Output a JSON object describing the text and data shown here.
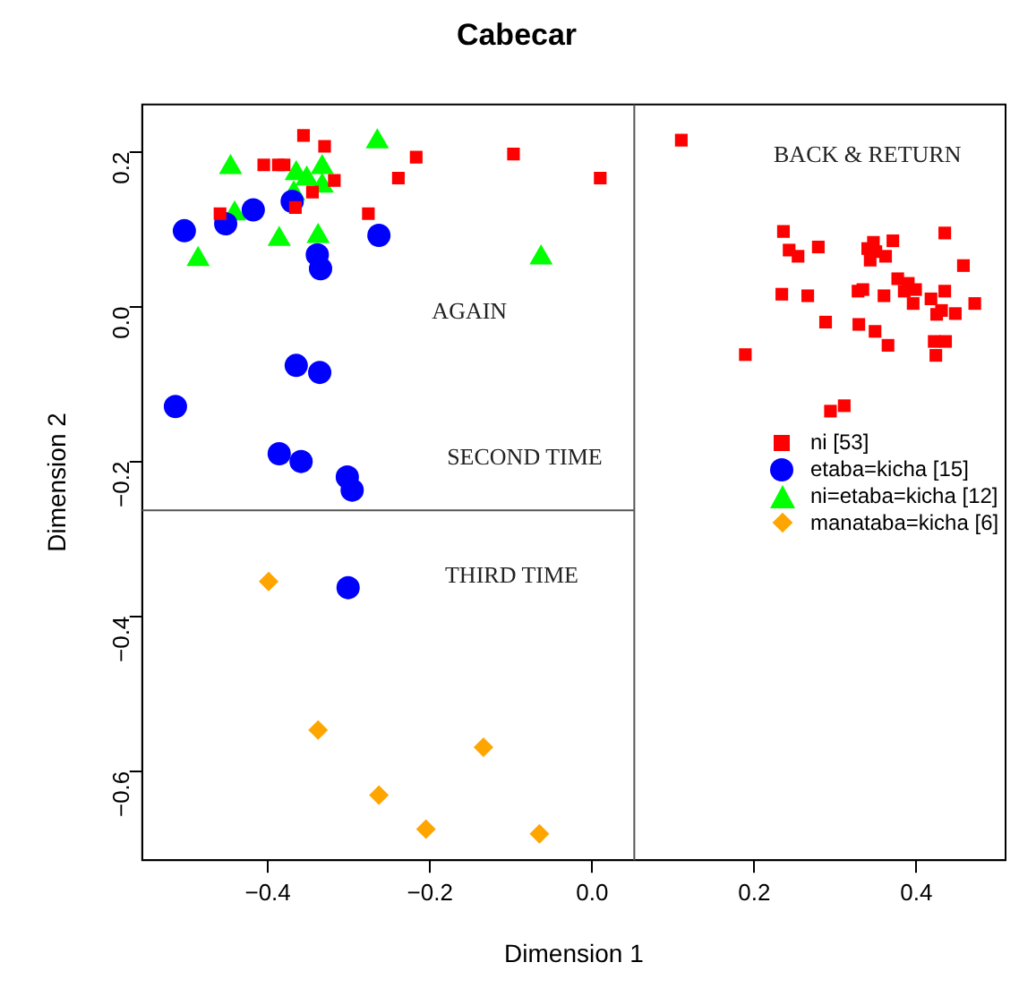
{
  "chart_data": {
    "type": "scatter",
    "title": "Cabecar",
    "xlabel": "Dimension 1",
    "ylabel": "Dimension 2",
    "xlim": [
      -0.555,
      0.51
    ],
    "xticks": [
      {
        "value": -0.4,
        "label": "−0.4"
      },
      {
        "value": -0.2,
        "label": "−0.2"
      },
      {
        "value": 0,
        "label": "0.0"
      },
      0.2,
      0.4
    ],
    "ylim": [
      -0.715,
      0.261
    ],
    "yticks": [
      {
        "value": -0.6,
        "label": "−0.6"
      },
      {
        "value": -0.4,
        "label": "−0.4"
      },
      {
        "value": -0.2,
        "label": "−0.2"
      },
      {
        "value": 0,
        "label": "0.0"
      },
      0.2
    ],
    "grid": false,
    "legend": "right",
    "ref_lines": [
      {
        "axis": "x",
        "value": 0.052,
        "color": "#555555"
      },
      {
        "axis": "y",
        "value": -0.263,
        "color": "#555555"
      }
    ],
    "annotations": [
      "BACK & RETURN",
      "AGAIN",
      "SECOND TIME",
      "THIRD TIME"
    ],
    "series": [
      {
        "name": "ni [53]",
        "color": "#ff0000",
        "marker": "square",
        "x": [
          -0.356,
          -0.33,
          -0.405,
          -0.387,
          -0.217,
          -0.097,
          0.01,
          -0.239,
          -0.318,
          -0.345,
          -0.366,
          -0.459,
          -0.276,
          -0.38,
          0.11,
          0.236,
          0.243,
          0.254,
          0.279,
          0.347,
          0.371,
          0.435,
          0.343,
          0.362,
          0.35,
          0.458,
          0.234,
          0.266,
          0.328,
          0.334,
          0.36,
          0.377,
          0.39,
          0.399,
          0.396,
          0.418,
          0.435,
          0.431,
          0.448,
          0.472,
          0.288,
          0.329,
          0.349,
          0.365,
          0.422,
          0.436,
          0.424,
          0.189,
          0.294,
          0.311,
          0.34,
          0.385,
          0.425
        ],
        "values": [
          0.221,
          0.207,
          0.183,
          0.183,
          0.193,
          0.197,
          0.166,
          0.166,
          0.163,
          0.148,
          0.128,
          0.12,
          0.12,
          0.183,
          0.215,
          0.097,
          0.073,
          0.065,
          0.077,
          0.083,
          0.085,
          0.095,
          0.06,
          0.065,
          0.071,
          0.053,
          0.016,
          0.014,
          0.02,
          0.022,
          0.014,
          0.036,
          0.03,
          0.022,
          0.004,
          0.01,
          0.02,
          -0.005,
          -0.009,
          0.004,
          -0.02,
          -0.023,
          -0.032,
          -0.05,
          -0.045,
          -0.045,
          -0.063,
          -0.062,
          -0.135,
          -0.128,
          0.075,
          0.02,
          -0.01
        ]
      },
      {
        "name": "etaba=kicha [15]",
        "color": "#0000ff",
        "marker": "circle",
        "x": [
          -0.503,
          -0.452,
          -0.418,
          -0.37,
          -0.263,
          -0.339,
          -0.335,
          -0.365,
          -0.336,
          -0.514,
          -0.386,
          -0.359,
          -0.302,
          -0.296,
          -0.301
        ],
        "values": [
          0.098,
          0.107,
          0.125,
          0.136,
          0.092,
          0.067,
          0.049,
          -0.076,
          -0.085,
          -0.129,
          -0.19,
          -0.2,
          -0.22,
          -0.237,
          -0.363
        ]
      },
      {
        "name": "ni=etaba=kicha [12]",
        "color": "#00ff00",
        "marker": "triangle",
        "x": [
          -0.446,
          -0.265,
          -0.365,
          -0.333,
          -0.368,
          -0.333,
          -0.441,
          -0.386,
          -0.338,
          -0.486,
          -0.063,
          -0.352
        ],
        "values": [
          0.18,
          0.213,
          0.172,
          0.18,
          0.146,
          0.156,
          0.12,
          0.087,
          0.091,
          0.061,
          0.063,
          0.165
        ]
      },
      {
        "name": "manataba=kicha [6]",
        "color": "#ffa500",
        "marker": "diamond",
        "x": [
          -0.399,
          -0.338,
          -0.134,
          -0.263,
          -0.205,
          -0.065
        ],
        "values": [
          -0.355,
          -0.547,
          -0.569,
          -0.631,
          -0.675,
          -0.681
        ]
      }
    ]
  }
}
